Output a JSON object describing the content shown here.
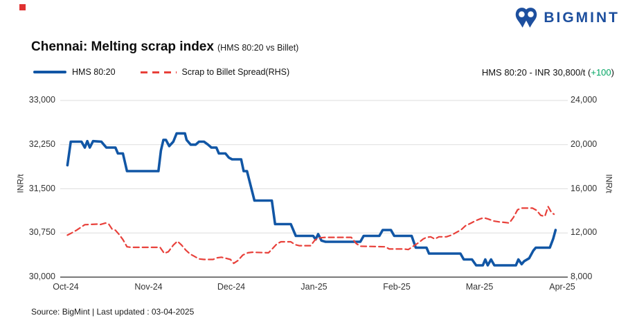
{
  "header": {
    "brand": "BIGMINT",
    "marker_color": "#e03131"
  },
  "title": "Chennai: Melting scrap index",
  "subtitle": "(HMS 80:20 vs Billet)",
  "legend": {
    "items": [
      {
        "label": "HMS 80:20",
        "color": "#1156a5",
        "style": "solid"
      },
      {
        "label": "Scrap to Billet Spread(RHS)",
        "color": "#e8403a",
        "style": "dashed"
      }
    ]
  },
  "annotation": {
    "prefix": "HMS 80:20 - INR 30,800/t (",
    "change": "+100",
    "suffix": ")",
    "change_color": "#00a562"
  },
  "footer": {
    "source": "Source: BigMint | Last updated : 03-04-2025"
  },
  "chart_data": {
    "type": "line",
    "title": "Chennai: Melting scrap index (HMS 80:20 vs Billet)",
    "grid": "horizontal-only",
    "legend_position": "top-left",
    "x_axis": {
      "ticks": [
        "Oct-24",
        "Nov-24",
        "Dec-24",
        "Jan-25",
        "Feb-25",
        "Mar-25",
        "Apr-25"
      ],
      "unit": "months from Oct-24"
    },
    "y_left": {
      "label": "INR/t",
      "range": [
        30000,
        33000
      ],
      "ticks": [
        33000,
        32250,
        31500,
        30750,
        30000
      ],
      "tick_labels": [
        "33,000",
        "32,250",
        "31,500",
        "30,750",
        "30,000"
      ]
    },
    "y_right": {
      "label": "INR/t",
      "range": [
        8000,
        24000
      ],
      "ticks": [
        24000,
        20000,
        16000,
        12000,
        8000
      ],
      "tick_labels": [
        "24,000",
        "20,000",
        "16,000",
        "12,000",
        "8,000"
      ]
    },
    "series": [
      {
        "name": "HMS 80:20",
        "axis": "left",
        "color": "#1156a5",
        "style": "solid",
        "last_value": 30800,
        "last_change": 100,
        "points": [
          [
            0.02,
            31900
          ],
          [
            0.06,
            32300
          ],
          [
            0.19,
            32300
          ],
          [
            0.23,
            32200
          ],
          [
            0.26,
            32310
          ],
          [
            0.29,
            32200
          ],
          [
            0.33,
            32310
          ],
          [
            0.43,
            32300
          ],
          [
            0.46,
            32250
          ],
          [
            0.49,
            32200
          ],
          [
            0.6,
            32200
          ],
          [
            0.63,
            32100
          ],
          [
            0.69,
            32100
          ],
          [
            0.74,
            31800
          ],
          [
            1.12,
            31800
          ],
          [
            1.15,
            32150
          ],
          [
            1.18,
            32330
          ],
          [
            1.21,
            32330
          ],
          [
            1.25,
            32225
          ],
          [
            1.3,
            32300
          ],
          [
            1.34,
            32440
          ],
          [
            1.44,
            32440
          ],
          [
            1.46,
            32330
          ],
          [
            1.51,
            32250
          ],
          [
            1.57,
            32250
          ],
          [
            1.61,
            32300
          ],
          [
            1.67,
            32300
          ],
          [
            1.72,
            32250
          ],
          [
            1.76,
            32200
          ],
          [
            1.82,
            32200
          ],
          [
            1.85,
            32100
          ],
          [
            1.93,
            32100
          ],
          [
            1.97,
            32030
          ],
          [
            2.01,
            32000
          ],
          [
            2.12,
            32000
          ],
          [
            2.15,
            31800
          ],
          [
            2.19,
            31800
          ],
          [
            2.28,
            31300
          ],
          [
            2.49,
            31300
          ],
          [
            2.53,
            30900
          ],
          [
            2.72,
            30900
          ],
          [
            2.78,
            30700
          ],
          [
            2.99,
            30700
          ],
          [
            3.02,
            30640
          ],
          [
            3.05,
            30730
          ],
          [
            3.09,
            30620
          ],
          [
            3.14,
            30600
          ],
          [
            3.56,
            30600
          ],
          [
            3.6,
            30700
          ],
          [
            3.79,
            30700
          ],
          [
            3.83,
            30800
          ],
          [
            3.93,
            30800
          ],
          [
            3.97,
            30700
          ],
          [
            4.18,
            30700
          ],
          [
            4.23,
            30500
          ],
          [
            4.36,
            30500
          ],
          [
            4.39,
            30400
          ],
          [
            4.77,
            30400
          ],
          [
            4.81,
            30300
          ],
          [
            4.91,
            30300
          ],
          [
            4.96,
            30200
          ],
          [
            5.04,
            30200
          ],
          [
            5.07,
            30300
          ],
          [
            5.1,
            30200
          ],
          [
            5.14,
            30300
          ],
          [
            5.18,
            30200
          ],
          [
            5.44,
            30200
          ],
          [
            5.47,
            30300
          ],
          [
            5.51,
            30220
          ],
          [
            5.54,
            30270
          ],
          [
            5.6,
            30320
          ],
          [
            5.65,
            30450
          ],
          [
            5.68,
            30500
          ],
          [
            5.85,
            30500
          ],
          [
            5.89,
            30650
          ],
          [
            5.92,
            30800
          ]
        ]
      },
      {
        "name": "Scrap to Billet Spread(RHS)",
        "axis": "right",
        "color": "#e8403a",
        "style": "dashed",
        "points": [
          [
            0.02,
            11800
          ],
          [
            0.07,
            12000
          ],
          [
            0.13,
            12250
          ],
          [
            0.18,
            12500
          ],
          [
            0.23,
            12750
          ],
          [
            0.38,
            12800
          ],
          [
            0.41,
            12750
          ],
          [
            0.48,
            12900
          ],
          [
            0.52,
            12800
          ],
          [
            0.56,
            12350
          ],
          [
            0.6,
            12250
          ],
          [
            0.64,
            11900
          ],
          [
            0.69,
            11400
          ],
          [
            0.74,
            10750
          ],
          [
            0.79,
            10700
          ],
          [
            1.14,
            10700
          ],
          [
            1.19,
            10150
          ],
          [
            1.24,
            10300
          ],
          [
            1.3,
            10900
          ],
          [
            1.35,
            11250
          ],
          [
            1.4,
            10900
          ],
          [
            1.45,
            10450
          ],
          [
            1.5,
            10100
          ],
          [
            1.55,
            9900
          ],
          [
            1.61,
            9650
          ],
          [
            1.67,
            9600
          ],
          [
            1.78,
            9600
          ],
          [
            1.83,
            9750
          ],
          [
            1.88,
            9800
          ],
          [
            1.94,
            9700
          ],
          [
            1.99,
            9600
          ],
          [
            2.03,
            9250
          ],
          [
            2.08,
            9500
          ],
          [
            2.14,
            10000
          ],
          [
            2.2,
            10200
          ],
          [
            2.25,
            10250
          ],
          [
            2.45,
            10200
          ],
          [
            2.5,
            10600
          ],
          [
            2.55,
            11000
          ],
          [
            2.6,
            11200
          ],
          [
            2.72,
            11200
          ],
          [
            2.77,
            10950
          ],
          [
            2.82,
            10850
          ],
          [
            2.96,
            10850
          ],
          [
            3.01,
            11350
          ],
          [
            3.06,
            11550
          ],
          [
            3.14,
            11600
          ],
          [
            3.45,
            11600
          ],
          [
            3.51,
            11050
          ],
          [
            3.56,
            10800
          ],
          [
            3.86,
            10750
          ],
          [
            3.91,
            10550
          ],
          [
            4.09,
            10550
          ],
          [
            4.14,
            10500
          ],
          [
            4.2,
            10800
          ],
          [
            4.26,
            11100
          ],
          [
            4.32,
            11450
          ],
          [
            4.36,
            11600
          ],
          [
            4.41,
            11650
          ],
          [
            4.46,
            11450
          ],
          [
            4.51,
            11650
          ],
          [
            4.6,
            11650
          ],
          [
            4.66,
            11800
          ],
          [
            4.72,
            12050
          ],
          [
            4.78,
            12300
          ],
          [
            4.83,
            12650
          ],
          [
            4.9,
            12900
          ],
          [
            4.95,
            13100
          ],
          [
            5.0,
            13250
          ],
          [
            5.05,
            13380
          ],
          [
            5.11,
            13250
          ],
          [
            5.17,
            13080
          ],
          [
            5.24,
            13000
          ],
          [
            5.31,
            12950
          ],
          [
            5.36,
            12900
          ],
          [
            5.41,
            13400
          ],
          [
            5.46,
            14100
          ],
          [
            5.51,
            14250
          ],
          [
            5.64,
            14250
          ],
          [
            5.69,
            14050
          ],
          [
            5.74,
            13600
          ],
          [
            5.79,
            13500
          ],
          [
            5.83,
            14380
          ],
          [
            5.87,
            13850
          ],
          [
            5.9,
            13700
          ]
        ]
      }
    ]
  }
}
